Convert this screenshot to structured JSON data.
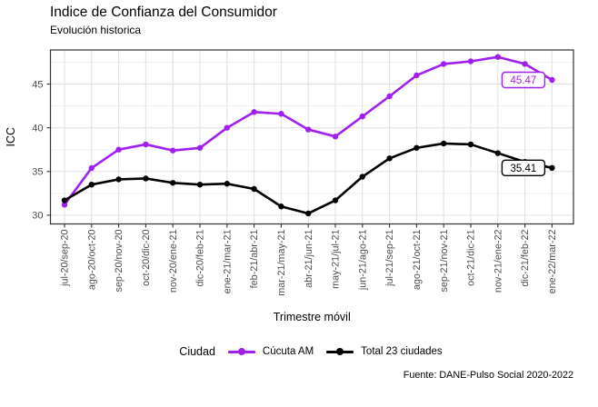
{
  "header": {
    "title": "Indice de Confianza del Consumidor",
    "subtitle": "Evolución historica"
  },
  "legend": {
    "title": "Ciudad",
    "items": [
      {
        "label": "Cúcuta AM",
        "color": "#A020F0"
      },
      {
        "label": "Total 23 ciudades",
        "color": "#000000"
      }
    ]
  },
  "caption": "Fuente: DANE-Pulso Social 2020-2022",
  "chart_data": {
    "type": "line",
    "title": "Indice de Confianza del Consumidor",
    "subtitle": "Evolución historica",
    "xlabel": "Trimestre móvil",
    "ylabel": "ICC",
    "categories": [
      "jul-20/sep-20",
      "ago-20/oct-20",
      "sep-20/nov-20",
      "oct-20/dic-20",
      "nov-20/ene-21",
      "dic-20/feb-21",
      "ene-21/mar-21",
      "feb-21/abr-21",
      "mar-21/may-21",
      "abr-21/jun-21",
      "may-21/jul-21",
      "jun-21/ago-21",
      "jul-21/sep-21",
      "ago-21/oct-21",
      "sep-21/nov-21",
      "oct-21/dic-21",
      "nov-21/ene-22",
      "dic-21/feb-22",
      "ene-22/mar-22"
    ],
    "series": [
      {
        "name": "Cúcuta AM",
        "color": "#A020F0",
        "values": [
          31.2,
          35.4,
          37.5,
          38.1,
          37.4,
          37.7,
          40.0,
          41.8,
          41.6,
          39.8,
          39.0,
          41.3,
          43.6,
          46.0,
          47.3,
          47.6,
          48.1,
          47.3,
          45.47
        ],
        "end_label": "45.47"
      },
      {
        "name": "Total 23 ciudades",
        "color": "#000000",
        "values": [
          31.7,
          33.5,
          34.1,
          34.2,
          33.7,
          33.5,
          33.6,
          33.0,
          31.0,
          30.2,
          31.7,
          34.4,
          36.5,
          37.7,
          38.2,
          38.1,
          37.1,
          36.1,
          35.41
        ],
        "end_label": "35.41"
      }
    ],
    "y_ticks": [
      30,
      35,
      40,
      45
    ],
    "y_minor_ticks": [
      32.5,
      37.5,
      42.5,
      47.5
    ],
    "ylim": [
      29.0,
      48.9
    ],
    "grid": true,
    "legend_position": "bottom",
    "legend_title": "Ciudad",
    "source": "Fuente: DANE-Pulso Social 2020-2022"
  }
}
